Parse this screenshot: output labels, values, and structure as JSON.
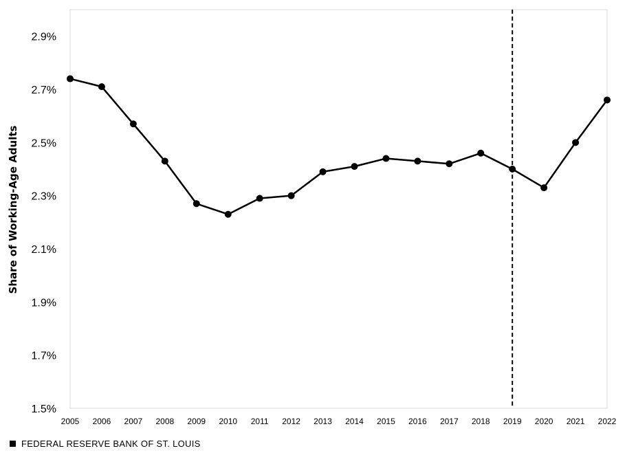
{
  "chart_data": {
    "type": "line",
    "title": "",
    "xlabel": "",
    "ylabel": "Share of Working-Age  Adults",
    "x": [
      "2005",
      "2006",
      "2007",
      "2008",
      "2009",
      "2010",
      "2011",
      "2012",
      "2013",
      "2014",
      "2015",
      "2016",
      "2017",
      "2018",
      "2019",
      "2020",
      "2021",
      "2022"
    ],
    "series": [
      {
        "values": [
          2.74,
          2.71,
          2.57,
          2.43,
          2.27,
          2.23,
          2.29,
          2.3,
          2.39,
          2.41,
          2.44,
          2.43,
          2.42,
          2.46,
          2.4,
          2.33,
          2.5,
          2.66
        ]
      }
    ],
    "ylim": [
      1.5,
      3.0
    ],
    "yticks": [
      {
        "value": 1.5,
        "label": "1.5%"
      },
      {
        "value": 1.7,
        "label": "1.7%"
      },
      {
        "value": 1.9,
        "label": "1.9%"
      },
      {
        "value": 2.1,
        "label": "2.1%"
      },
      {
        "value": 2.3,
        "label": "2.3%"
      },
      {
        "value": 2.5,
        "label": "2.5%"
      },
      {
        "value": 2.7,
        "label": "2.7%"
      },
      {
        "value": 2.9,
        "label": "2.9%"
      }
    ],
    "reference_line": {
      "x": "2019",
      "style": "dashed"
    },
    "grid": false,
    "legend": "none",
    "line_color": "#000000",
    "marker_color": "#000000"
  },
  "footer": {
    "source": "FEDERAL RESERVE BANK OF ST. LOUIS"
  }
}
